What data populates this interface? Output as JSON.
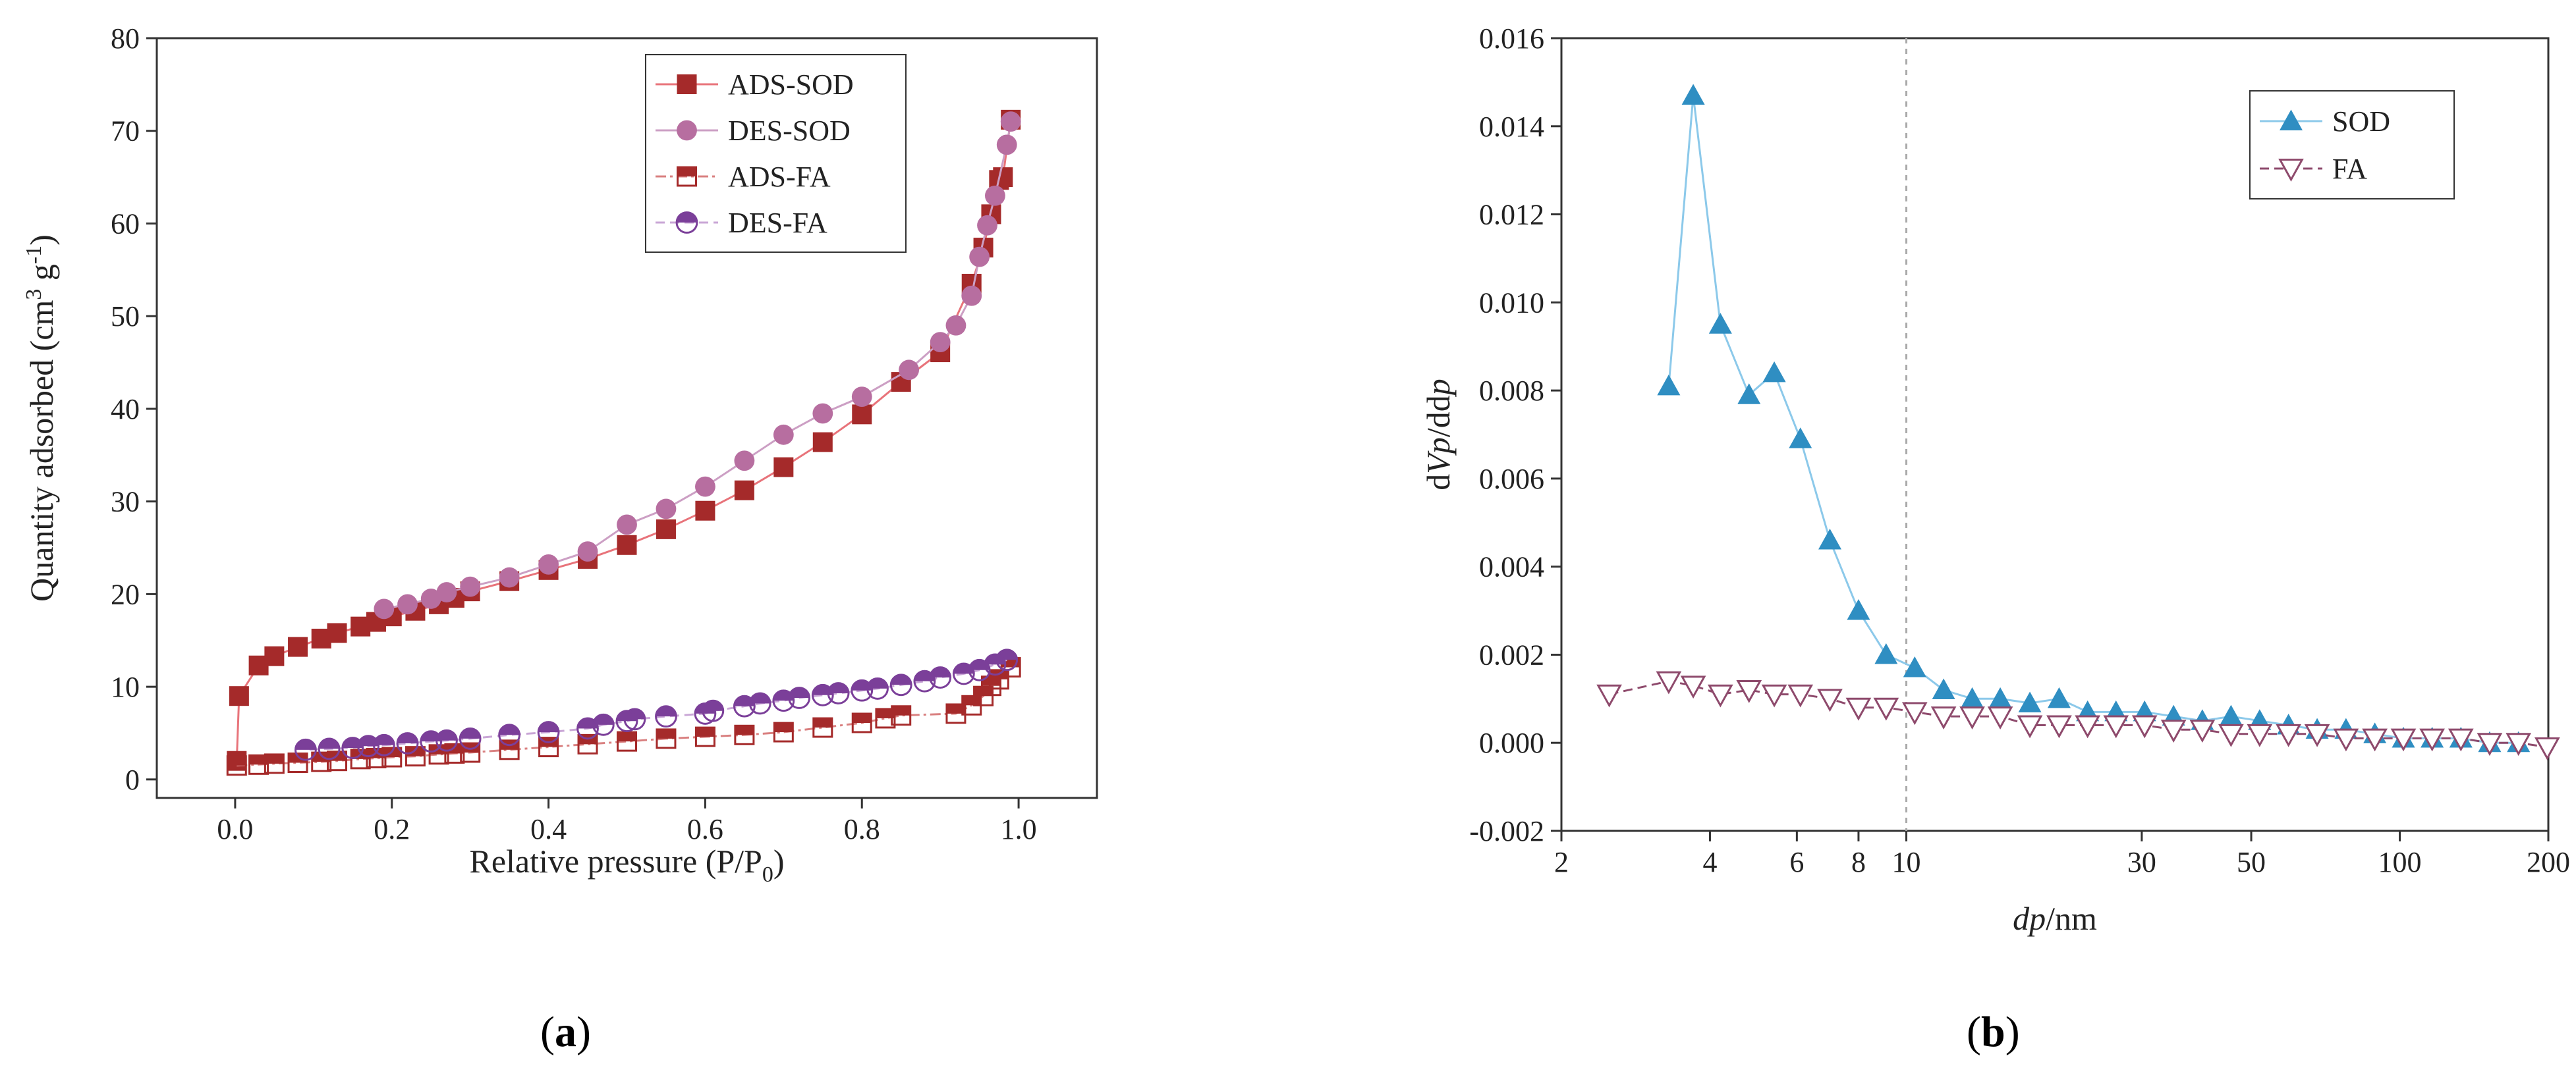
{
  "panels": {
    "a_label": "a",
    "b_label": "b"
  },
  "chart_data": [
    {
      "type": "line",
      "panel": "a",
      "xlabel_main": "Relative pressure (P/P",
      "xlabel_sub": "0",
      "xlabel_end": ")",
      "ylabel_main": "Quantity adsorbed (cm",
      "ylabel_sup": "3",
      "ylabel_mid": " g",
      "ylabel_sup2": "-1",
      "ylabel_end": ")",
      "xlim": [
        -0.1,
        1.1
      ],
      "ylim": [
        -2,
        80
      ],
      "x_ticks": [
        0.0,
        0.2,
        0.4,
        0.6,
        0.8,
        1.0
      ],
      "x_tick_labels": [
        "0.0",
        "0.2",
        "0.4",
        "0.6",
        "0.8",
        "1.0"
      ],
      "y_ticks": [
        0,
        10,
        20,
        30,
        40,
        50,
        60,
        70,
        80
      ],
      "y_tick_labels": [
        "0",
        "10",
        "20",
        "30",
        "40",
        "50",
        "60",
        "70",
        "80"
      ],
      "legend_position": "top-right",
      "series": [
        {
          "name": "ADS-SOD",
          "color": "#a52a2a",
          "line_color": "#e8737a",
          "marker": "square-filled",
          "dash": "solid",
          "x": [
            0.002,
            0.005,
            0.03,
            0.05,
            0.08,
            0.11,
            0.13,
            0.16,
            0.18,
            0.2,
            0.23,
            0.26,
            0.28,
            0.3,
            0.35,
            0.4,
            0.45,
            0.5,
            0.55,
            0.6,
            0.65,
            0.7,
            0.75,
            0.8,
            0.85,
            0.9,
            0.94,
            0.955,
            0.965,
            0.975,
            0.98,
            0.99
          ],
          "y": [
            2.0,
            9.0,
            12.3,
            13.3,
            14.3,
            15.2,
            15.8,
            16.5,
            17.0,
            17.6,
            18.2,
            18.9,
            19.6,
            20.3,
            21.4,
            22.6,
            23.8,
            25.3,
            27.0,
            29.0,
            31.2,
            33.7,
            36.4,
            39.4,
            42.9,
            46.1,
            53.5,
            57.4,
            61.0,
            64.7,
            65.0,
            71.2
          ]
        },
        {
          "name": "DES-SOD",
          "color": "#b76ea0",
          "line_color": "#cc9fc4",
          "marker": "circle-filled",
          "dash": "solid",
          "x": [
            0.99,
            0.985,
            0.97,
            0.96,
            0.95,
            0.94,
            0.92,
            0.9,
            0.86,
            0.8,
            0.75,
            0.7,
            0.65,
            0.6,
            0.55,
            0.5,
            0.45,
            0.4,
            0.35,
            0.3,
            0.27,
            0.25,
            0.22,
            0.19
          ],
          "y": [
            71.0,
            68.5,
            63.0,
            59.8,
            56.4,
            52.2,
            49.0,
            47.2,
            44.2,
            41.3,
            39.5,
            37.2,
            34.4,
            31.6,
            29.2,
            27.5,
            24.6,
            23.2,
            21.8,
            20.8,
            20.2,
            19.5,
            18.9,
            18.4
          ]
        },
        {
          "name": "ADS-FA",
          "color": "#a52a2a",
          "line_color": "#d98080",
          "marker": "square-half",
          "dash": "dashdot",
          "x": [
            0.002,
            0.03,
            0.05,
            0.08,
            0.11,
            0.13,
            0.16,
            0.18,
            0.2,
            0.23,
            0.26,
            0.28,
            0.3,
            0.35,
            0.4,
            0.45,
            0.5,
            0.55,
            0.6,
            0.65,
            0.7,
            0.75,
            0.8,
            0.83,
            0.85,
            0.92,
            0.94,
            0.955,
            0.965,
            0.975,
            0.99
          ],
          "y": [
            1.5,
            1.6,
            1.7,
            1.8,
            1.9,
            2.0,
            2.2,
            2.3,
            2.4,
            2.5,
            2.7,
            2.8,
            2.9,
            3.2,
            3.5,
            3.8,
            4.1,
            4.4,
            4.6,
            4.8,
            5.1,
            5.6,
            6.1,
            6.6,
            6.9,
            7.1,
            8.0,
            9.0,
            10.1,
            10.8,
            12.1
          ]
        },
        {
          "name": "DES-FA",
          "color": "#7b3f99",
          "line_color": "#c9a6d6",
          "marker": "circle-half",
          "dash": "dashed",
          "x": [
            0.985,
            0.97,
            0.95,
            0.93,
            0.9,
            0.88,
            0.85,
            0.82,
            0.8,
            0.77,
            0.75,
            0.72,
            0.7,
            0.67,
            0.65,
            0.61,
            0.6,
            0.55,
            0.51,
            0.5,
            0.47,
            0.45,
            0.4,
            0.35,
            0.3,
            0.27,
            0.25,
            0.22,
            0.19,
            0.17,
            0.15,
            0.12,
            0.09
          ],
          "y": [
            12.9,
            12.4,
            11.8,
            11.4,
            11.0,
            10.6,
            10.2,
            9.8,
            9.6,
            9.3,
            9.1,
            8.8,
            8.5,
            8.2,
            7.9,
            7.4,
            7.1,
            6.8,
            6.5,
            6.3,
            5.9,
            5.5,
            5.1,
            4.8,
            4.4,
            4.2,
            4.1,
            3.9,
            3.7,
            3.6,
            3.4,
            3.3,
            3.2
          ]
        }
      ]
    },
    {
      "type": "line",
      "panel": "b",
      "x_scale": "log",
      "xlabel_italic": "dp",
      "xlabel_rest": "/nm",
      "ylabel_d1": "d",
      "ylabel_i1": "Vp",
      "ylabel_slash": "/d",
      "ylabel_d2": "d",
      "ylabel_i2": "p",
      "xlim": [
        2,
        200
      ],
      "ylim": [
        -0.002,
        0.016
      ],
      "x_ticks": [
        2,
        4,
        6,
        8,
        10,
        30,
        50,
        100,
        200
      ],
      "x_tick_labels": [
        "2",
        "4",
        "6",
        "8",
        "10",
        "30",
        "50",
        "100",
        "200"
      ],
      "y_ticks": [
        -0.002,
        0.0,
        0.002,
        0.004,
        0.006,
        0.008,
        0.01,
        0.012,
        0.014,
        0.016
      ],
      "y_tick_labels": [
        "-0.002",
        "0.000",
        "0.002",
        "0.004",
        "0.006",
        "0.008",
        "0.010",
        "0.012",
        "0.014",
        "0.016"
      ],
      "reference_line_x": 10,
      "legend_position": "top-right",
      "series": [
        {
          "name": "SOD",
          "color": "#2f8ec2",
          "line_color": "#8cc9ea",
          "marker": "triangle-up-filled",
          "dash": "solid",
          "x": [
            3.3,
            3.7,
            4.2,
            4.8,
            5.4,
            6.1,
            7.0,
            8.0,
            9.1,
            10.4,
            11.9,
            13.6,
            15.5,
            17.8,
            20.4,
            23.3,
            26.6,
            30.4,
            34.8,
            39.8,
            45.5,
            52.0,
            59.5,
            68.0,
            77.8,
            89.0,
            101.7,
            116.3,
            133.0,
            152.1,
            174.0
          ],
          "y": [
            0.0081,
            0.0147,
            0.0095,
            0.0079,
            0.0084,
            0.0069,
            0.0046,
            0.003,
            0.002,
            0.0017,
            0.0012,
            0.001,
            0.001,
            0.0009,
            0.001,
            0.0007,
            0.0007,
            0.0007,
            0.0006,
            0.0005,
            0.0006,
            0.0005,
            0.0004,
            0.0003,
            0.0003,
            0.0002,
            0.0001,
            0.0001,
            0.0001,
            0.0,
            0.0
          ]
        },
        {
          "name": "FA",
          "color": "#8e4a6c",
          "line_color": "#8e4a6c",
          "marker": "triangle-down-open",
          "dash": "dashed",
          "x": [
            2.5,
            3.3,
            3.7,
            4.2,
            4.8,
            5.4,
            6.1,
            7.0,
            8.0,
            9.1,
            10.4,
            11.9,
            13.6,
            15.5,
            17.8,
            20.4,
            23.3,
            26.6,
            30.4,
            34.8,
            39.8,
            45.5,
            52.0,
            59.5,
            68.0,
            77.8,
            89.0,
            101.7,
            116.3,
            133.0,
            152.1,
            174.0,
            199.0
          ],
          "y": [
            0.0011,
            0.0014,
            0.0013,
            0.0011,
            0.0012,
            0.0011,
            0.0011,
            0.001,
            0.0008,
            0.0008,
            0.0007,
            0.0006,
            0.0006,
            0.0006,
            0.0004,
            0.0004,
            0.0004,
            0.0004,
            0.0004,
            0.0003,
            0.0003,
            0.0002,
            0.0002,
            0.0002,
            0.0002,
            0.0001,
            0.0001,
            0.0001,
            0.0001,
            0.0001,
            0.0,
            0.0,
            -0.0001
          ]
        }
      ]
    }
  ]
}
